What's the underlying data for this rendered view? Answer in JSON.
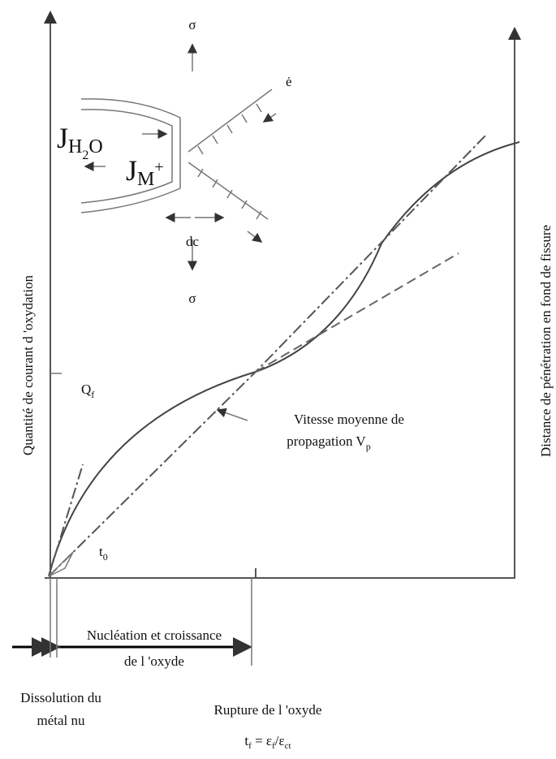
{
  "axes": {
    "left_label": "Quantité de courant d 'oxydation",
    "right_label": "Distance de pénétration en fond de fissure"
  },
  "inset": {
    "sigma_top": "σ",
    "strain_rate": "ė",
    "flux_water": [
      "J",
      "H",
      "2",
      "O"
    ],
    "flux_metal": [
      "J",
      "M",
      "+"
    ],
    "dc": "dc",
    "sigma_bottom": "σ"
  },
  "annotations": {
    "qf": [
      "Q",
      "f"
    ],
    "velocity": [
      "Vitesse moyenne de",
      "propagation V",
      "p"
    ],
    "t0": [
      "t",
      "0"
    ]
  },
  "phases": {
    "nucleation": [
      "Nucléation et croissance",
      "de l 'oxyde"
    ],
    "dissolution": [
      "Dissolution du",
      "métal nu"
    ],
    "rupture": "Rupture de l 'oxyde",
    "formula": [
      "t",
      "f",
      " = ε",
      "f",
      "/ε",
      "ct"
    ]
  }
}
